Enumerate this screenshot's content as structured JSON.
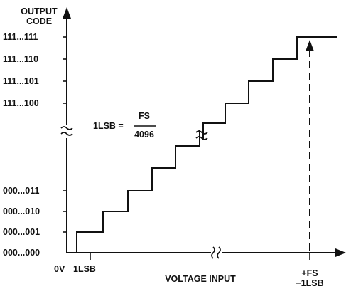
{
  "diagram": {
    "y_axis_title_line1": "OUTPUT",
    "y_axis_title_line2": "CODE",
    "x_axis_title": "VOLTAGE INPUT",
    "y_codes_top": [
      "111...111",
      "111...110",
      "111...101",
      "111...100"
    ],
    "y_codes_bottom": [
      "000...011",
      "000...010",
      "000...001",
      "000...000"
    ],
    "x_label_origin": "0V",
    "x_label_1lsb": "1LSB",
    "x_label_fs_line1": "+FS",
    "x_label_fs_line2": "−1LSB",
    "formula_lhs": "1LSB =",
    "formula_numerator": "FS",
    "formula_denominator": "4096"
  }
}
